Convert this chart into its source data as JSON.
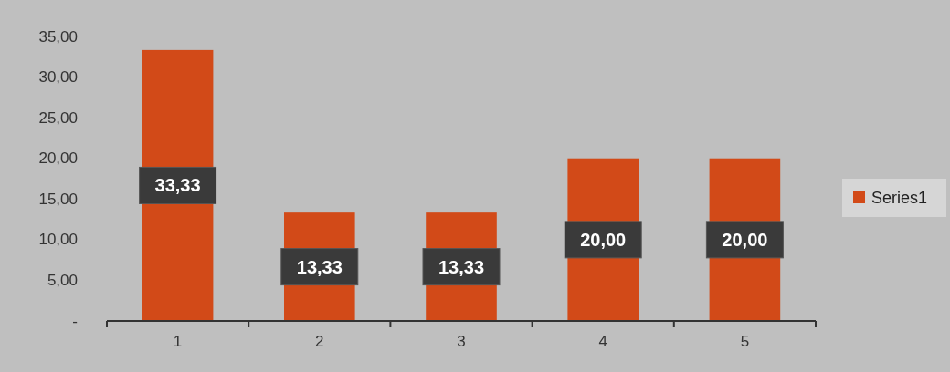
{
  "chart_data": {
    "type": "bar",
    "categories": [
      "1",
      "2",
      "3",
      "4",
      "5"
    ],
    "series": [
      {
        "name": "Series1",
        "color": "#d24a18",
        "values": [
          33.33,
          13.33,
          13.33,
          20,
          20
        ],
        "value_labels": [
          "33,33",
          "13,33",
          "13,33",
          "20,00",
          "20,00"
        ]
      }
    ],
    "ylim": [
      0,
      35
    ],
    "yticks": [
      {
        "value": 0,
        "label": "-"
      },
      {
        "value": 5,
        "label": "5,00"
      },
      {
        "value": 10,
        "label": "10,00"
      },
      {
        "value": 15,
        "label": "15,00"
      },
      {
        "value": 20,
        "label": "20,00"
      },
      {
        "value": 25,
        "label": "25,00"
      },
      {
        "value": 30,
        "label": "30,00"
      },
      {
        "value": 35,
        "label": "35,00"
      }
    ],
    "legend": "right"
  }
}
